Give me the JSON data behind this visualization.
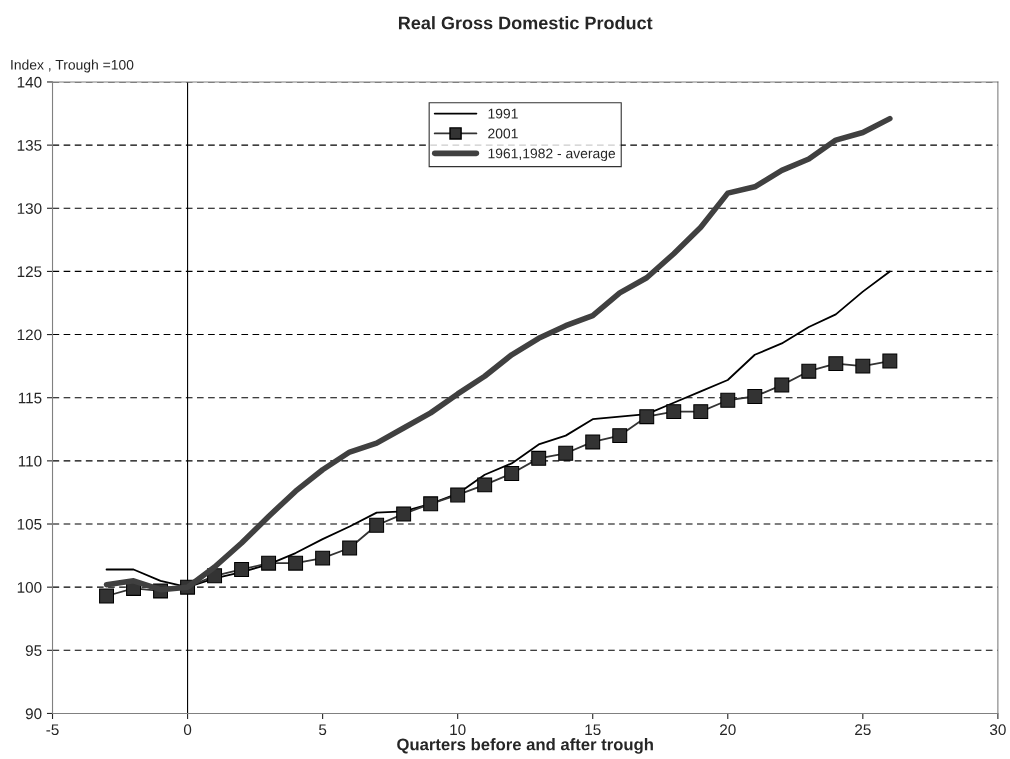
{
  "chart_data": {
    "type": "line",
    "title": "Real Gross Domestic Product",
    "xlabel": "Quarters before and after trough",
    "ylabel": "Index , Trough =100",
    "x": [
      -3,
      -2,
      -1,
      0,
      1,
      2,
      3,
      4,
      5,
      6,
      7,
      8,
      9,
      10,
      11,
      12,
      13,
      14,
      15,
      16,
      17,
      18,
      19,
      20,
      21,
      22,
      23,
      24,
      25,
      26
    ],
    "series": [
      {
        "name": "1991",
        "color": "#000000",
        "marker": "none",
        "values": [
          101.4,
          101.4,
          100.5,
          100,
          100.7,
          101.2,
          101.8,
          102.7,
          103.8,
          104.8,
          105.9,
          106.0,
          106.6,
          107.4,
          108.9,
          109.8,
          111.3,
          112.0,
          113.3,
          113.5,
          113.7,
          114.6,
          115.5,
          116.4,
          118.4,
          119.3,
          120.6,
          121.6,
          123.4,
          125.0
        ]
      },
      {
        "name": "2001",
        "color": "#333333",
        "marker": "square",
        "values": [
          99.3,
          99.9,
          99.7,
          100,
          100.9,
          101.4,
          101.9,
          101.9,
          102.3,
          103.1,
          104.9,
          105.8,
          106.6,
          107.3,
          108.1,
          109.0,
          110.2,
          110.6,
          111.5,
          112.0,
          113.5,
          113.9,
          113.9,
          114.8,
          115.1,
          116.0,
          117.1,
          117.7,
          117.5,
          117.9
        ]
      },
      {
        "name": "1961,1982 - average",
        "color": "#404040",
        "marker": "none",
        "values": [
          100.2,
          100.5,
          99.8,
          100,
          101.6,
          103.5,
          105.6,
          107.6,
          109.3,
          110.7,
          111.4,
          112.6,
          113.8,
          115.3,
          116.7,
          118.4,
          119.7,
          120.7,
          121.5,
          123.3,
          124.5,
          126.4,
          128.5,
          131.2,
          131.7,
          133.0,
          133.9,
          135.4,
          136.0,
          137.1
        ]
      }
    ],
    "xlim": [
      -5,
      30
    ],
    "xticks": [
      -5,
      0,
      5,
      10,
      15,
      20,
      25,
      30
    ],
    "ylim": [
      90,
      140
    ],
    "yticks": [
      90,
      95,
      100,
      105,
      110,
      115,
      120,
      125,
      130,
      135,
      140
    ],
    "ref_lines": [
      {
        "axis": "x",
        "value": 0,
        "color": "#000000",
        "line_style": "solid"
      }
    ],
    "grid": "y",
    "legend": "top",
    "line_style": "solid"
  }
}
